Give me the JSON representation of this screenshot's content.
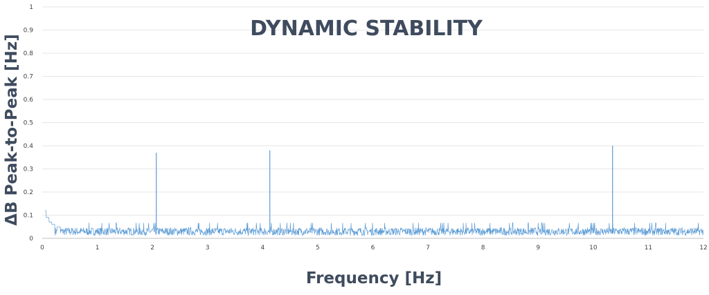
{
  "chart_data": {
    "type": "line",
    "title": "DYNAMIC STABILITY",
    "xlabel": "Frequency [Hz]",
    "ylabel": "ΔB  Peak-to-Peak [Hz]",
    "xlim": [
      0,
      12
    ],
    "ylim": [
      0,
      1
    ],
    "x_ticks": [
      "0",
      "1",
      "2",
      "3",
      "4",
      "5",
      "6",
      "7",
      "8",
      "9",
      "10",
      "11",
      "12"
    ],
    "y_ticks": [
      "0",
      "0.1",
      "0.2",
      "0.3",
      "0.4",
      "0.5",
      "0.6",
      "0.7",
      "0.8",
      "0.9",
      "1"
    ],
    "grid": true,
    "line_color": "#5b9bd5",
    "series": [
      {
        "noise_floor": 0.03,
        "points": [
          [
            0.05,
            0.12
          ],
          [
            0.1,
            0.09
          ],
          [
            0.15,
            0.07
          ],
          [
            0.2,
            0.06
          ],
          [
            0.3,
            0.05
          ],
          [
            2.07,
            0.37
          ],
          [
            4.13,
            0.38
          ],
          [
            10.35,
            0.4
          ]
        ]
      }
    ]
  }
}
